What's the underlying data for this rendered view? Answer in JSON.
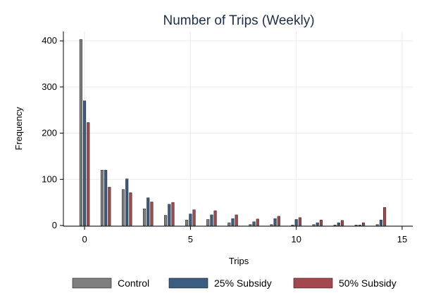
{
  "chart_data": {
    "type": "bar",
    "title": "Number of Trips (Weekly)",
    "xlabel": "Trips",
    "ylabel": "Frequency",
    "xlim": [
      -1,
      15.5
    ],
    "ylim": [
      0,
      420
    ],
    "x_ticks": [
      0,
      5,
      10,
      15
    ],
    "y_ticks": [
      0,
      100,
      200,
      300,
      400
    ],
    "grid": true,
    "legend_position": "bottom",
    "x": [
      0,
      1,
      2,
      3,
      4,
      5,
      6,
      7,
      8,
      9,
      10,
      11,
      12,
      13,
      14
    ],
    "series": [
      {
        "name": "Control",
        "color": "#7f7f7f",
        "values": [
          403,
          120,
          78,
          36,
          22,
          12,
          13,
          6,
          2,
          2,
          1,
          2,
          1,
          1,
          2
        ]
      },
      {
        "name": "25% Subsidy",
        "color": "#3b5e80",
        "values": [
          270,
          120,
          101,
          60,
          46,
          25,
          23,
          15,
          8,
          15,
          13,
          6,
          6,
          1,
          12
        ]
      },
      {
        "name": "50% Subsidy",
        "color": "#a4484f",
        "values": [
          223,
          83,
          71,
          51,
          50,
          34,
          32,
          23,
          14,
          20,
          17,
          12,
          11,
          6,
          39
        ]
      }
    ]
  }
}
